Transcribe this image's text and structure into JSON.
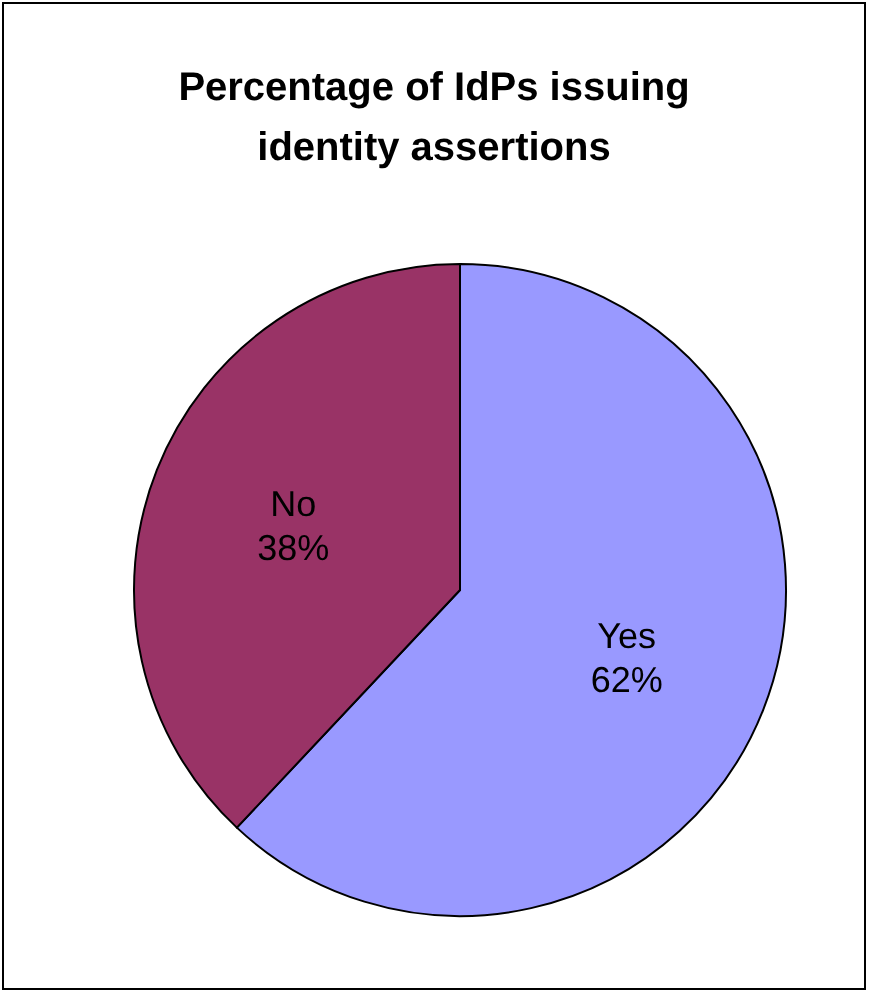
{
  "chart_data": {
    "type": "pie",
    "title": "Percentage of IdPs issuing identity assertions",
    "categories": [
      "Yes",
      "No"
    ],
    "values": [
      62,
      38
    ],
    "colors": [
      "#9999ff",
      "#993366"
    ],
    "value_labels": [
      "62%",
      "38%"
    ]
  }
}
